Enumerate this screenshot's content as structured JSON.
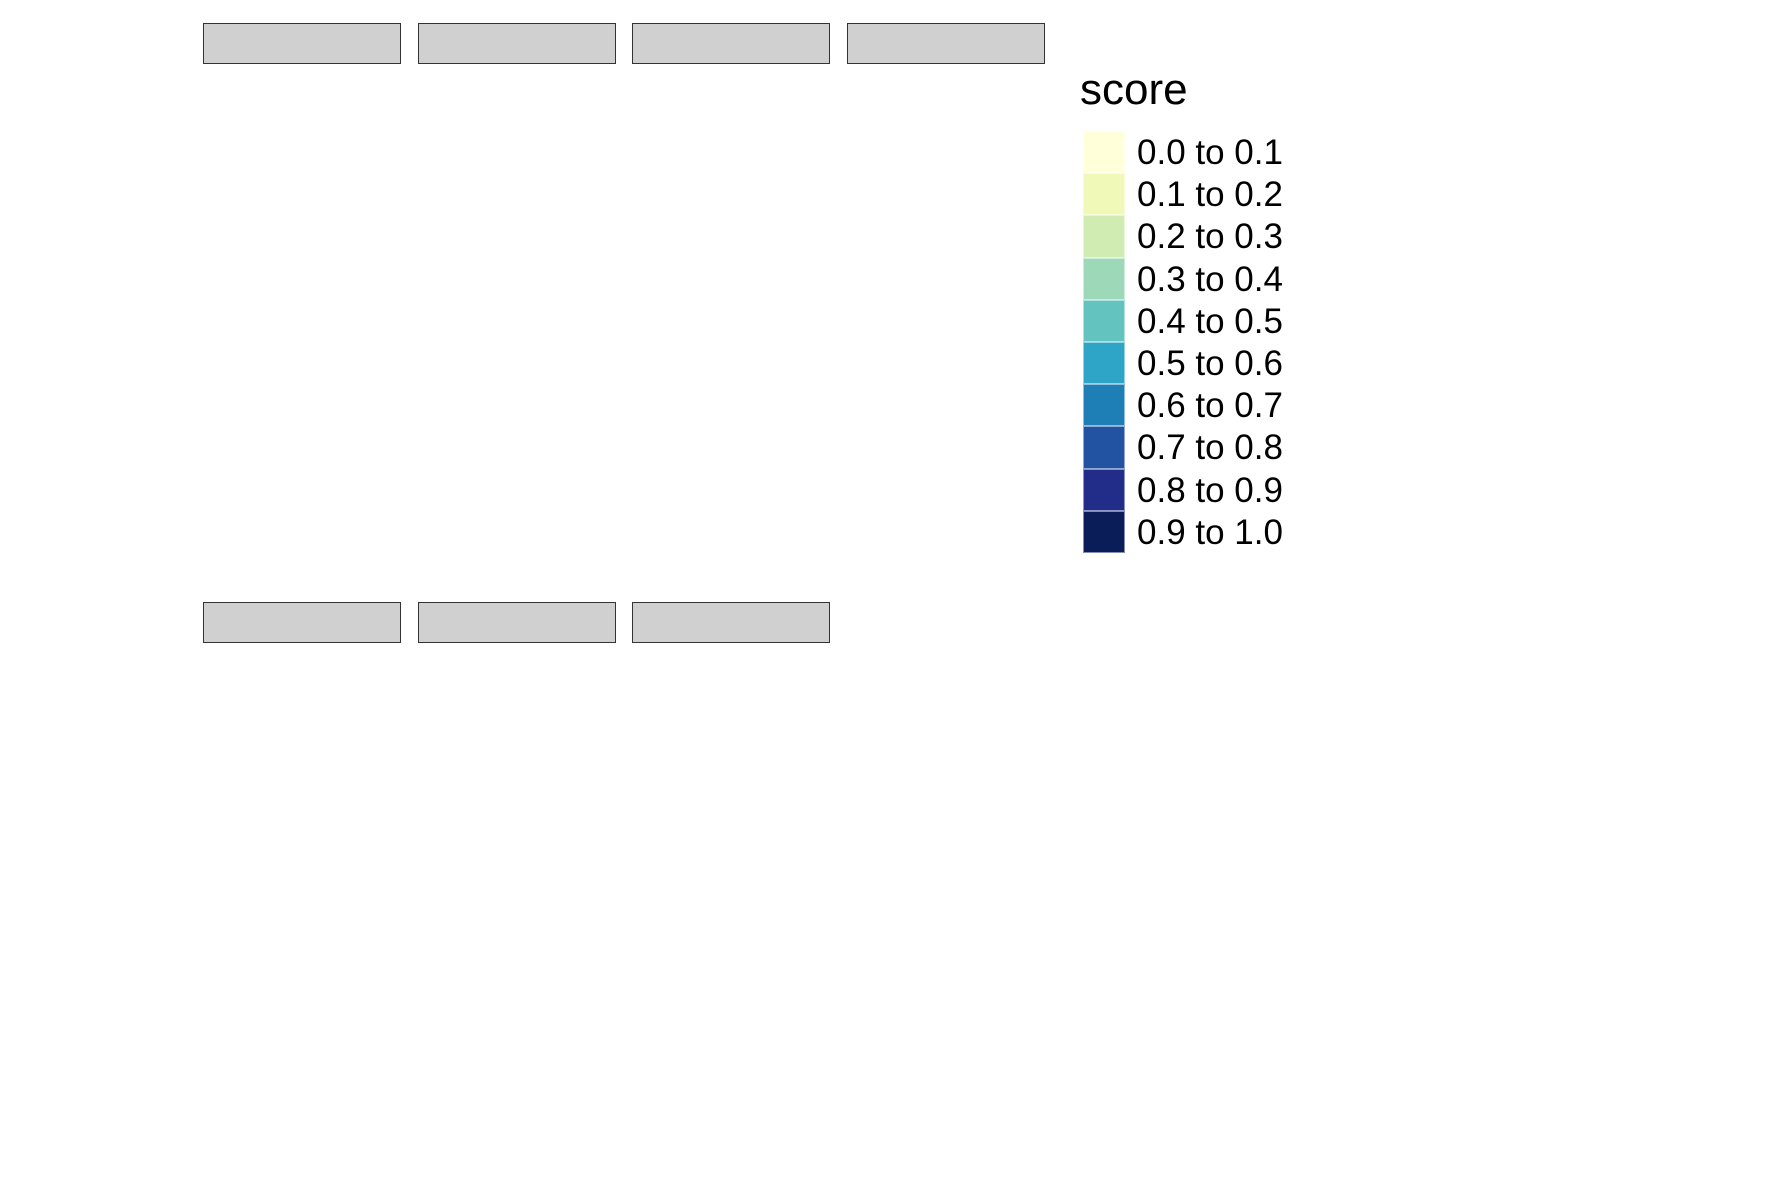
{
  "chart_data": {
    "type": "heatmap",
    "panels_top_row": 4,
    "panels_bottom_row": 3,
    "legend": {
      "title": "score",
      "items": [
        {
          "label": "0.0 to 0.1",
          "color": "#ffffd9"
        },
        {
          "label": "0.1 to 0.2",
          "color": "#f0f9b7"
        },
        {
          "label": "0.2 to 0.3",
          "color": "#d0ecb3"
        },
        {
          "label": "0.3 to 0.4",
          "color": "#9dd8b9"
        },
        {
          "label": "0.4 to 0.5",
          "color": "#63c3bf"
        },
        {
          "label": "0.5 to 0.6",
          "color": "#2ea4c7"
        },
        {
          "label": "0.6 to 0.7",
          "color": "#1e7fb7"
        },
        {
          "label": "0.7 to 0.8",
          "color": "#2253a3"
        },
        {
          "label": "0.8 to 0.9",
          "color": "#212d89"
        },
        {
          "label": "0.9 to 1.0",
          "color": "#0a1d58"
        }
      ]
    },
    "strip_color": "#d0d0d0"
  }
}
